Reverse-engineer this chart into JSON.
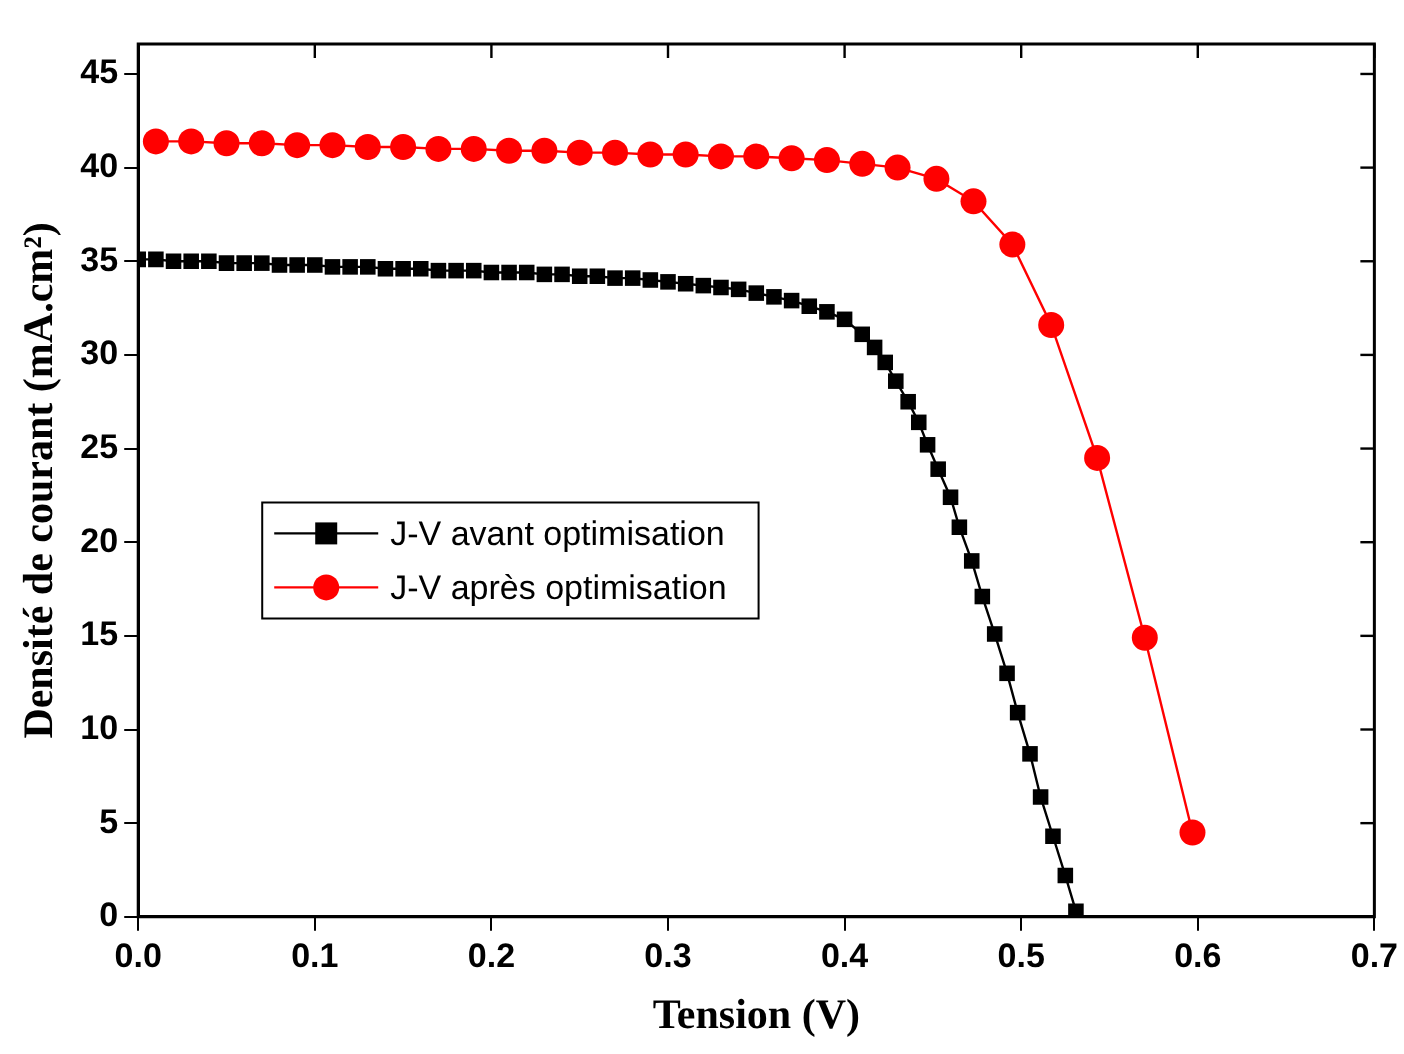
{
  "chart_data": {
    "type": "line",
    "xlabel": "Tension (V)",
    "ylabel": "Densité de courant (mA.cm²)",
    "xlim": [
      0,
      0.7
    ],
    "xticks": [
      {
        "value": 0,
        "label": "0.0"
      },
      0.1,
      0.2,
      0.3,
      0.4,
      0.5,
      0.6,
      0.7
    ],
    "ylim": [
      0,
      46.6
    ],
    "yticks": [
      0,
      5,
      10,
      15,
      20,
      25,
      30,
      35,
      40,
      45
    ],
    "grid": false,
    "legend": "center left",
    "series": [
      {
        "name": "J-V avant optimisation",
        "color": "#000000",
        "marker": "square",
        "x": [
          0,
          0.01,
          0.02,
          0.03,
          0.04,
          0.05,
          0.06,
          0.07,
          0.08,
          0.09,
          0.1,
          0.11,
          0.12,
          0.13,
          0.14,
          0.15,
          0.16,
          0.17,
          0.18,
          0.19,
          0.2,
          0.21,
          0.22,
          0.23,
          0.24,
          0.25,
          0.26,
          0.27,
          0.28,
          0.29,
          0.3,
          0.31,
          0.32,
          0.33,
          0.34,
          0.35,
          0.36,
          0.37,
          0.38,
          0.39,
          0.4,
          0.41,
          0.417,
          0.423,
          0.429,
          0.436,
          0.442,
          0.447,
          0.453,
          0.46,
          0.465,
          0.472,
          0.478,
          0.485,
          0.492,
          0.498,
          0.505,
          0.511,
          0.518,
          0.525,
          0.531
        ],
        "values": [
          35.1,
          35.1,
          35.0,
          35.0,
          35.0,
          34.9,
          34.9,
          34.9,
          34.8,
          34.8,
          34.8,
          34.7,
          34.7,
          34.7,
          34.6,
          34.6,
          34.6,
          34.5,
          34.5,
          34.5,
          34.4,
          34.4,
          34.4,
          34.3,
          34.3,
          34.2,
          34.2,
          34.1,
          34.1,
          34.0,
          33.9,
          33.8,
          33.7,
          33.6,
          33.5,
          33.3,
          33.1,
          32.9,
          32.6,
          32.3,
          31.9,
          31.1,
          30.4,
          29.6,
          28.6,
          27.5,
          26.4,
          25.2,
          23.9,
          22.4,
          20.8,
          19.0,
          17.1,
          15.1,
          13.0,
          10.9,
          8.7,
          6.4,
          4.3,
          2.2,
          0.3
        ]
      },
      {
        "name": "J-V après optimisation",
        "color": "#ff0000",
        "marker": "circle",
        "x": [
          0.01,
          0.03,
          0.05,
          0.07,
          0.09,
          0.11,
          0.13,
          0.15,
          0.17,
          0.19,
          0.21,
          0.23,
          0.25,
          0.27,
          0.29,
          0.31,
          0.33,
          0.35,
          0.37,
          0.39,
          0.41,
          0.43,
          0.452,
          0.473,
          0.495,
          0.517,
          0.543,
          0.57,
          0.597
        ],
        "values": [
          41.4,
          41.4,
          41.3,
          41.3,
          41.2,
          41.2,
          41.1,
          41.1,
          41.0,
          41.0,
          40.9,
          40.9,
          40.8,
          40.8,
          40.7,
          40.7,
          40.6,
          40.6,
          40.5,
          40.4,
          40.2,
          40.0,
          39.4,
          38.2,
          35.9,
          31.6,
          24.5,
          14.9,
          4.5
        ]
      }
    ]
  }
}
